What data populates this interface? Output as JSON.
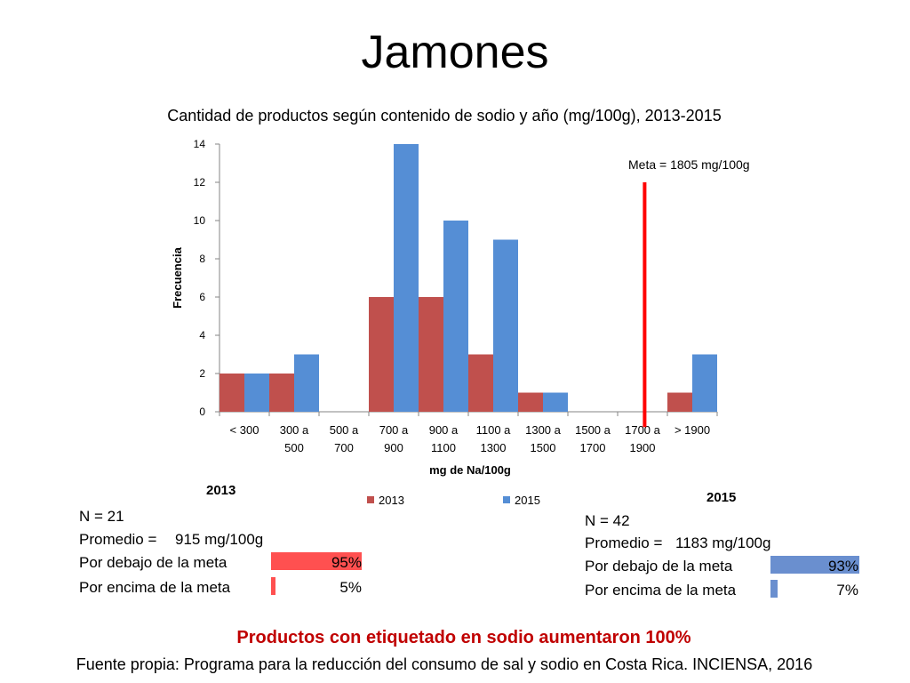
{
  "slide_title": "Jamones",
  "headline": "Productos con etiquetado en sodio aumentaron 100%",
  "source": "Fuente propia: Programa para la reducción del consumo de sal y sodio en Costa Rica. INCIENSA, 2016",
  "chart_data": {
    "type": "bar",
    "title": "Cantidad de productos según contenido de sodio y año (mg/100g), 2013-2015",
    "xlabel": "mg de Na/100g",
    "ylabel": "Frecuencia",
    "ylim": [
      0,
      14
    ],
    "yticks": [
      0,
      2,
      4,
      6,
      8,
      10,
      12,
      14
    ],
    "categories": [
      [
        "< 300"
      ],
      [
        "300 a",
        "500"
      ],
      [
        "500 a",
        "700"
      ],
      [
        "700 a",
        "900"
      ],
      [
        "900 a",
        "1100"
      ],
      [
        "1100 a",
        "1300"
      ],
      [
        "1300 a",
        "1500"
      ],
      [
        "1500 a",
        "1700"
      ],
      [
        "1700 a",
        "1900"
      ],
      [
        "> 1900"
      ]
    ],
    "series": [
      {
        "name": "2013",
        "color": "#c0504d",
        "values": [
          2,
          2,
          0,
          6,
          6,
          3,
          1,
          0,
          0,
          1
        ]
      },
      {
        "name": "2015",
        "color": "#558ed5",
        "values": [
          2,
          3,
          0,
          14,
          10,
          9,
          1,
          0,
          0,
          3
        ]
      }
    ],
    "meta_label": "Meta = 1805 mg/100g",
    "meta_value": 1805,
    "meta_color": "#ff0000",
    "grid": false,
    "legend": "bottom"
  },
  "stats_2013": {
    "year": "2013",
    "n": "N = 21",
    "promedio_label": "Promedio =",
    "promedio_value": "915 mg/100g",
    "below_label": "Por debajo de la meta",
    "below_pct": "95%",
    "below_value": 95,
    "above_label": "Por encima de la meta",
    "above_pct": "5%",
    "above_value": 5,
    "color": "#ff5050"
  },
  "stats_2015": {
    "year": "2015",
    "n": "N = 42",
    "promedio_label": "Promedio =",
    "promedio_value": "1183 mg/100g",
    "below_label": "Por debajo de la meta",
    "below_pct": "93%",
    "below_value": 93,
    "above_label": "Por encima de la meta",
    "above_pct": "7%",
    "above_value": 7,
    "color": "#6a8fcf"
  }
}
